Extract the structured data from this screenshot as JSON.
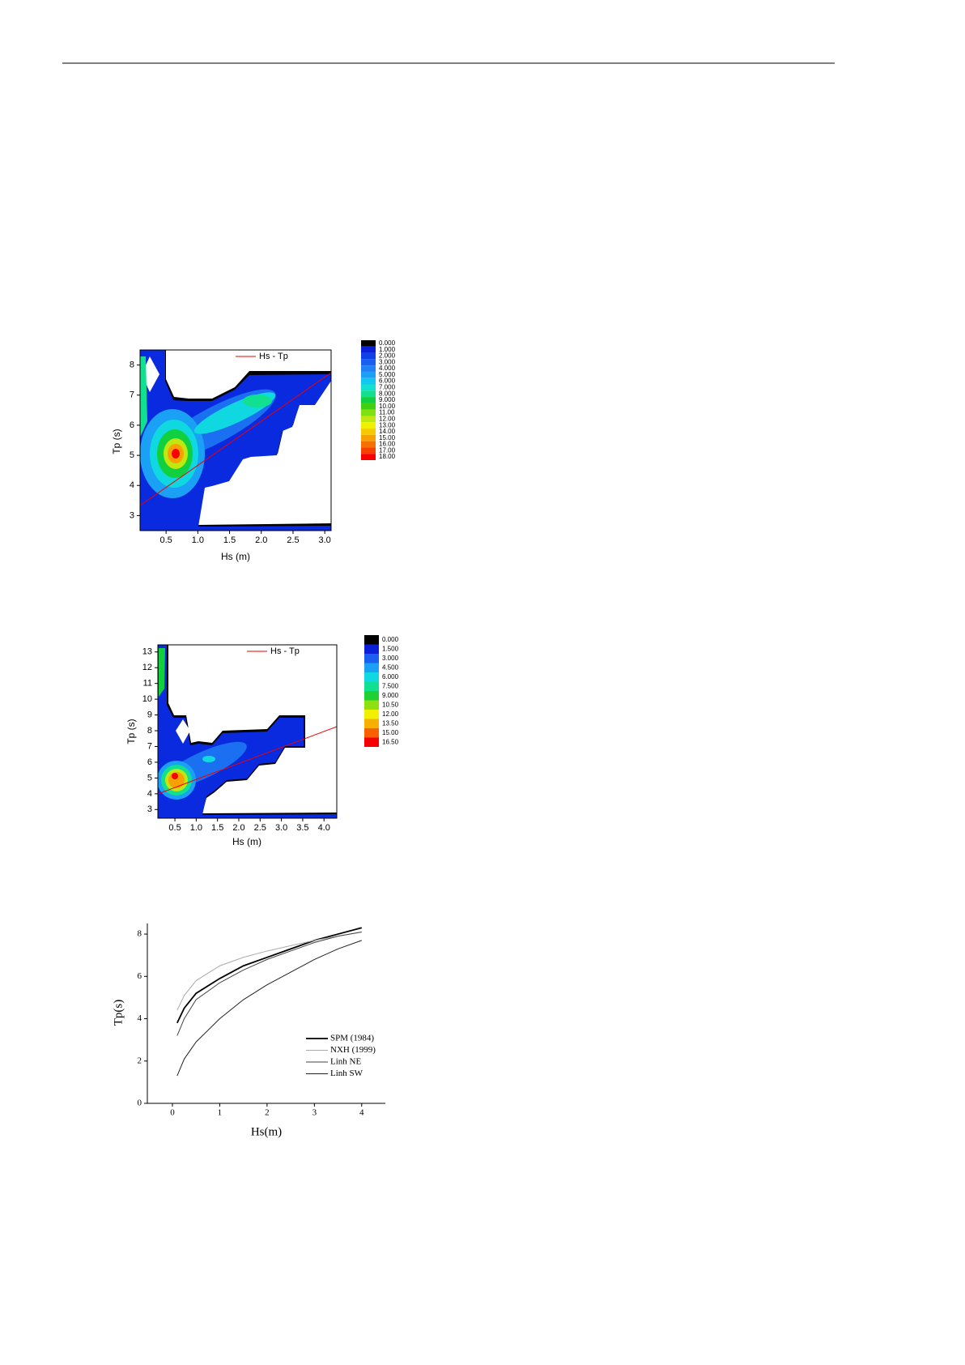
{
  "chart_data": [
    {
      "type": "contour",
      "x_label": "Hs (m)",
      "y_label": "Tp (s)",
      "legend": "Hs - Tp",
      "xlim": [
        0.09,
        3.1
      ],
      "xticks": [
        0.5,
        {
          "value": 1,
          "label": "1.0"
        },
        1.5,
        {
          "value": 2,
          "label": "2.0"
        },
        2.5,
        {
          "value": 3,
          "label": "3.0"
        }
      ],
      "ylim": [
        2.5,
        8.5
      ],
      "yticks": [
        3,
        4,
        5,
        6,
        7,
        8
      ],
      "levels": [
        {
          "value": 0,
          "label": "0.000"
        },
        {
          "value": 1,
          "label": "1.000"
        },
        {
          "value": 2,
          "label": "2.000"
        },
        {
          "value": 3,
          "label": "3.000"
        },
        {
          "value": 4,
          "label": "4.000"
        },
        {
          "value": 5,
          "label": "5.000"
        },
        {
          "value": 6,
          "label": "6.000"
        },
        {
          "value": 7,
          "label": "7.000"
        },
        {
          "value": 8,
          "label": "8.000"
        },
        {
          "value": 9,
          "label": "9.000"
        },
        {
          "value": 10,
          "label": "10.00"
        },
        {
          "value": 11,
          "label": "11.00"
        },
        {
          "value": 12,
          "label": "12.00"
        },
        {
          "value": 13,
          "label": "13.00"
        },
        {
          "value": 14,
          "label": "14.00"
        },
        {
          "value": 15,
          "label": "15.00"
        },
        {
          "value": 16,
          "label": "16.00"
        },
        {
          "value": 17,
          "label": "17.00"
        },
        {
          "value": 18,
          "label": "18.00"
        }
      ],
      "colors": [
        "#000000",
        "#0a1fd6",
        "#1040e8",
        "#1a60f0",
        "#2080f5",
        "#1aa0f5",
        "#10c8f0",
        "#10e0d0",
        "#10e090",
        "#10d040",
        "#40d010",
        "#80e010",
        "#c0e810",
        "#f0f000",
        "#f8c800",
        "#f8a000",
        "#f87000",
        "#f84000",
        "#f80000"
      ]
    },
    {
      "type": "contour",
      "x_label": "Hs (m)",
      "y_label": "Tp (s)",
      "legend": "Hs - Tp",
      "xlim": [
        0.1,
        4.3
      ],
      "xticks": [
        0.5,
        {
          "value": 1,
          "label": "1.0"
        },
        1.5,
        {
          "value": 2,
          "label": "2.0"
        },
        2.5,
        {
          "value": 3,
          "label": "3.0"
        },
        3.5,
        {
          "value": 4,
          "label": "4.0"
        }
      ],
      "ylim": [
        2.45,
        13.45
      ],
      "yticks": [
        3,
        4,
        5,
        6,
        7,
        8,
        9,
        10,
        11,
        12,
        13
      ],
      "levels": [
        {
          "value": 0,
          "label": "0.000"
        },
        {
          "value": 1.5,
          "label": "1.500"
        },
        {
          "value": 3,
          "label": "3.000"
        },
        {
          "value": 4.5,
          "label": "4.500"
        },
        {
          "value": 6,
          "label": "6.000"
        },
        {
          "value": 7.5,
          "label": "7.500"
        },
        {
          "value": 9,
          "label": "9.000"
        },
        {
          "value": 10.5,
          "label": "10.50"
        },
        {
          "value": 12,
          "label": "12.00"
        },
        {
          "value": 13.5,
          "label": "13.50"
        },
        {
          "value": 15,
          "label": "15.00"
        },
        {
          "value": 16.5,
          "label": "16.50"
        }
      ],
      "colors": [
        "#000000",
        "#0a1fd6",
        "#1a60f0",
        "#1aa0f5",
        "#10d8e0",
        "#10e090",
        "#20d030",
        "#90e010",
        "#f0f000",
        "#f8b000",
        "#f86000",
        "#f80000"
      ]
    },
    {
      "type": "line",
      "x_label": "Hs(m)",
      "y_label": "Tp(s)",
      "xlim": [
        -0.53,
        4.5
      ],
      "xticks": [
        0,
        1,
        2,
        3,
        4
      ],
      "ylim": [
        0,
        8.5
      ],
      "yticks": [
        0,
        2,
        4,
        6,
        8
      ],
      "x": [
        0.1,
        0.25,
        0.5,
        1,
        1.5,
        2,
        2.5,
        3,
        3.5,
        4
      ],
      "series": [
        {
          "name": "SPM (1984)",
          "color": "#000000",
          "values": [
            3.8,
            4.5,
            5.2,
            5.9,
            6.5,
            6.9,
            7.3,
            7.7,
            8.0,
            8.3
          ]
        },
        {
          "name": "NXH (1999)",
          "color": "#aaaaaa",
          "values": [
            4.4,
            5.1,
            5.8,
            6.5,
            6.9,
            7.2,
            7.45,
            7.7,
            7.9,
            8.1
          ]
        },
        {
          "name": "Linh NE",
          "color": "#444444",
          "values": [
            3.2,
            4.0,
            4.9,
            5.7,
            6.3,
            6.8,
            7.2,
            7.6,
            7.9,
            8.1
          ]
        },
        {
          "name": "Linh SW",
          "color": "#222222",
          "values": [
            1.3,
            2.1,
            2.9,
            4.0,
            4.9,
            5.6,
            6.2,
            6.8,
            7.3,
            7.7
          ]
        }
      ]
    }
  ]
}
